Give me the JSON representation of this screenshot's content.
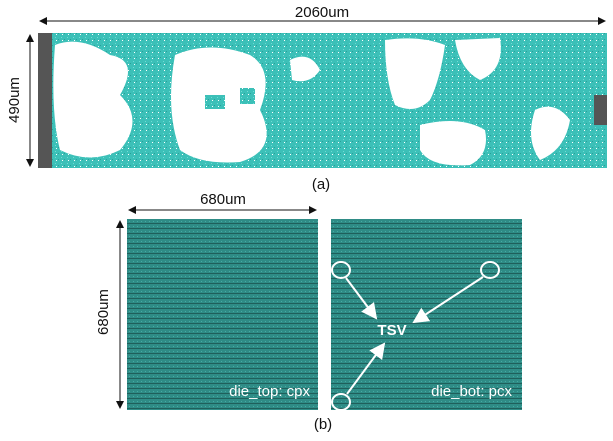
{
  "figure": {
    "a": {
      "width_label": "2060um",
      "height_label": "490um",
      "caption": "(a)"
    },
    "b": {
      "width_label": "680um",
      "height_label": "680um",
      "panels": [
        {
          "label": "die_top: cpx"
        },
        {
          "label": "die_bot: pcx",
          "annotation": "TSV"
        }
      ],
      "caption": "(b)"
    }
  }
}
